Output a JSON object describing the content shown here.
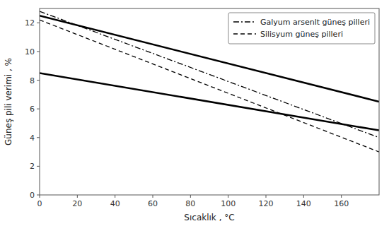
{
  "chart_data": {
    "type": "line",
    "xlabel": "Sıcaklık , °C",
    "ylabel": "Güneş pili verimi , %",
    "xlim": [
      0,
      180
    ],
    "ylim": [
      0,
      13
    ],
    "xticks": [
      0,
      20,
      40,
      60,
      80,
      100,
      120,
      140,
      160
    ],
    "yticks": [
      0,
      2,
      4,
      6,
      8,
      10,
      12
    ],
    "grid": false,
    "legend": "upper right",
    "series": [
      {
        "x": [
          0,
          180
        ],
        "values": [
          12.5,
          6.5
        ],
        "color": "#000000",
        "line_style": "solid"
      },
      {
        "x": [
          0,
          180
        ],
        "values": [
          8.5,
          4.5
        ],
        "color": "#000000",
        "line_style": "solid"
      },
      {
        "name": "Galyum arsenlt güneş pilleri",
        "x": [
          0,
          180
        ],
        "values": [
          12.8,
          4.0
        ],
        "color": "#000000",
        "line_style": "dashdot"
      },
      {
        "name": "Silisyum güneş pilleri",
        "x": [
          0,
          180
        ],
        "values": [
          12.2,
          3.0
        ],
        "color": "#000000",
        "line_style": "dashed"
      }
    ]
  }
}
